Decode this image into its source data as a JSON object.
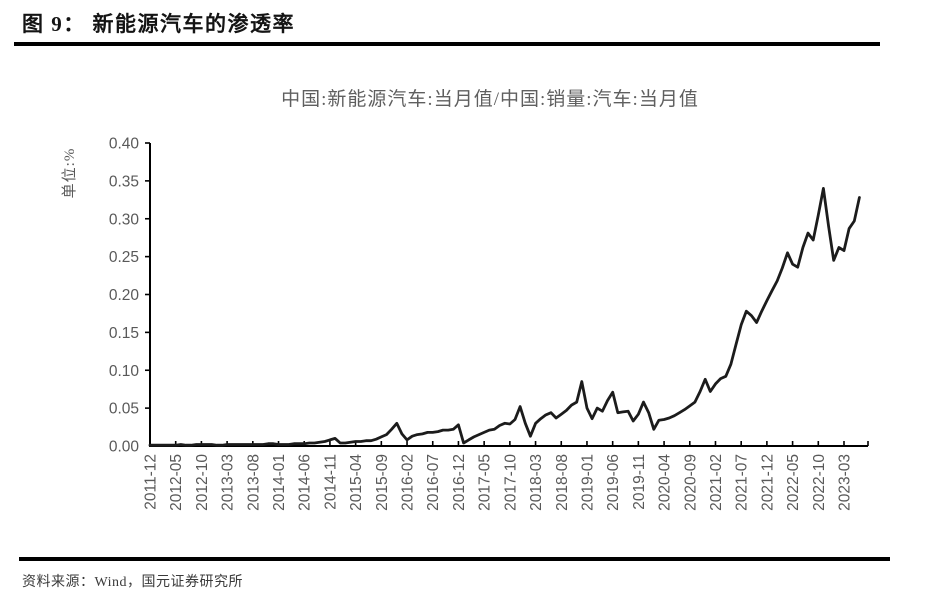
{
  "figure": {
    "title": "图 9： 新能源汽车的渗透率",
    "source": "资料来源：Wind，国元证券研究所"
  },
  "chart_data": {
    "type": "line",
    "title": "中国:新能源汽车:当月值/中国:销量:汽车:当月值",
    "ylabel": "单位:%",
    "xlabel": "",
    "ylim": [
      0,
      0.4
    ],
    "ytick_step": 0.05,
    "grid": false,
    "legend": "none",
    "frequency": "monthly",
    "line_color": "#1c1c1c",
    "axis_color": "#000000",
    "label_color": "#595959",
    "y_tick_labels": [
      "0.40",
      "0.35",
      "0.30",
      "0.25",
      "0.20",
      "0.15",
      "0.10",
      "0.05",
      "0.00"
    ],
    "x_tick_labels": [
      "2011-12",
      "2012-05",
      "2012-10",
      "2013-03",
      "2013-08",
      "2014-01",
      "2014-06",
      "2014-11",
      "2015-04",
      "2015-09",
      "2016-02",
      "2016-07",
      "2016-12",
      "2017-05",
      "2017-10",
      "2018-03",
      "2018-08",
      "2019-01",
      "2019-06",
      "2019-11",
      "2020-04",
      "2020-09",
      "2021-02",
      "2021-07",
      "2021-12",
      "2022-05",
      "2022-10",
      "2023-03"
    ],
    "x": [
      "2011-12",
      "2012-01",
      "2012-02",
      "2012-03",
      "2012-04",
      "2012-05",
      "2012-06",
      "2012-07",
      "2012-08",
      "2012-09",
      "2012-10",
      "2012-11",
      "2012-12",
      "2013-01",
      "2013-02",
      "2013-03",
      "2013-04",
      "2013-05",
      "2013-06",
      "2013-07",
      "2013-08",
      "2013-09",
      "2013-10",
      "2013-11",
      "2013-12",
      "2014-01",
      "2014-02",
      "2014-03",
      "2014-04",
      "2014-05",
      "2014-06",
      "2014-07",
      "2014-08",
      "2014-09",
      "2014-10",
      "2014-11",
      "2014-12",
      "2015-01",
      "2015-02",
      "2015-03",
      "2015-04",
      "2015-05",
      "2015-06",
      "2015-07",
      "2015-08",
      "2015-09",
      "2015-10",
      "2015-11",
      "2015-12",
      "2016-01",
      "2016-02",
      "2016-03",
      "2016-04",
      "2016-05",
      "2016-06",
      "2016-07",
      "2016-08",
      "2016-09",
      "2016-10",
      "2016-11",
      "2016-12",
      "2017-01",
      "2017-02",
      "2017-03",
      "2017-04",
      "2017-05",
      "2017-06",
      "2017-07",
      "2017-08",
      "2017-09",
      "2017-10",
      "2017-11",
      "2017-12",
      "2018-01",
      "2018-02",
      "2018-03",
      "2018-04",
      "2018-05",
      "2018-06",
      "2018-07",
      "2018-08",
      "2018-09",
      "2018-10",
      "2018-11",
      "2018-12",
      "2019-01",
      "2019-02",
      "2019-03",
      "2019-04",
      "2019-05",
      "2019-06",
      "2019-07",
      "2019-08",
      "2019-09",
      "2019-10",
      "2019-11",
      "2019-12",
      "2020-01",
      "2020-02",
      "2020-03",
      "2020-04",
      "2020-05",
      "2020-06",
      "2020-07",
      "2020-08",
      "2020-09",
      "2020-10",
      "2020-11",
      "2020-12",
      "2021-01",
      "2021-02",
      "2021-03",
      "2021-04",
      "2021-05",
      "2021-06",
      "2021-07",
      "2021-08",
      "2021-09",
      "2021-10",
      "2021-11",
      "2021-12",
      "2022-01",
      "2022-02",
      "2022-03",
      "2022-04",
      "2022-05",
      "2022-06",
      "2022-07",
      "2022-08",
      "2022-09",
      "2022-10",
      "2022-11",
      "2022-12",
      "2023-01",
      "2023-02",
      "2023-03",
      "2023-04",
      "2023-05",
      "2023-06"
    ],
    "values": [
      0.001,
      0.001,
      0.001,
      0.001,
      0.001,
      0.001,
      0.002,
      0.001,
      0.001,
      0.002,
      0.002,
      0.002,
      0.002,
      0.001,
      0.001,
      0.002,
      0.002,
      0.002,
      0.002,
      0.002,
      0.002,
      0.002,
      0.002,
      0.003,
      0.003,
      0.002,
      0.002,
      0.002,
      0.003,
      0.003,
      0.003,
      0.004,
      0.004,
      0.005,
      0.006,
      0.008,
      0.01,
      0.004,
      0.004,
      0.005,
      0.006,
      0.006,
      0.007,
      0.007,
      0.009,
      0.012,
      0.015,
      0.022,
      0.03,
      0.016,
      0.008,
      0.013,
      0.015,
      0.016,
      0.018,
      0.018,
      0.019,
      0.021,
      0.021,
      0.022,
      0.028,
      0.004,
      0.008,
      0.012,
      0.015,
      0.018,
      0.021,
      0.022,
      0.027,
      0.03,
      0.029,
      0.035,
      0.052,
      0.03,
      0.013,
      0.03,
      0.036,
      0.041,
      0.044,
      0.037,
      0.042,
      0.047,
      0.054,
      0.058,
      0.085,
      0.05,
      0.036,
      0.05,
      0.046,
      0.06,
      0.071,
      0.044,
      0.045,
      0.046,
      0.033,
      0.042,
      0.058,
      0.044,
      0.022,
      0.034,
      0.035,
      0.037,
      0.04,
      0.044,
      0.048,
      0.053,
      0.058,
      0.072,
      0.088,
      0.072,
      0.082,
      0.089,
      0.092,
      0.108,
      0.134,
      0.16,
      0.178,
      0.172,
      0.163,
      0.178,
      0.192,
      0.205,
      0.218,
      0.235,
      0.255,
      0.24,
      0.236,
      0.262,
      0.281,
      0.272,
      0.305,
      0.34,
      0.29,
      0.245,
      0.262,
      0.258,
      0.287,
      0.297,
      0.328
    ]
  }
}
